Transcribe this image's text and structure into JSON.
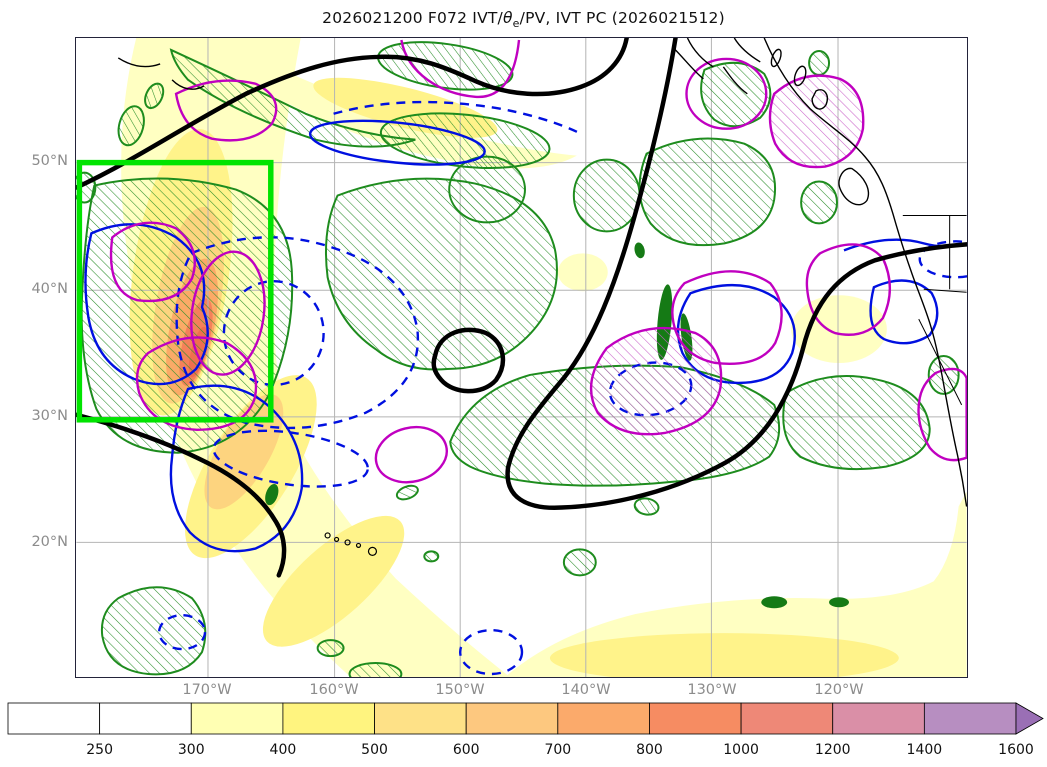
{
  "title": {
    "prefix": "2026021200 F072 IVT/",
    "theta": "θ",
    "theta_sub": "e",
    "suffix": "/PV, IVT PC (2026021512)"
  },
  "chart_data": {
    "type": "heatmap",
    "title": "2026021200 F072 IVT/θe/PV, IVT PC (2026021512)",
    "x_tick_labels": [
      "170°W",
      "160°W",
      "150°W",
      "140°W",
      "130°W",
      "120°W"
    ],
    "y_tick_labels": [
      "50°N",
      "40°N",
      "30°N",
      "20°N"
    ],
    "colorbar": {
      "levels": [
        "250",
        "300",
        "400",
        "500",
        "600",
        "700",
        "800",
        "1000",
        "1200",
        "1400",
        "1600"
      ],
      "segment_colors": [
        "#ffffff",
        "#ffffff",
        "#ffffb3",
        "#fff47f",
        "#fee187",
        "#fdc87f",
        "#fbaa6b",
        "#f68c62",
        "#ee8877",
        "#da8fa7",
        "#b78ec1"
      ],
      "arrow_color": "#9a6fb5",
      "border_color": "#000000"
    },
    "layers": {
      "ivt_fill_colors": [
        "#ffffc2",
        "#fff38a",
        "#fdd47f",
        "#fbaa67",
        "#f4815a",
        "#ef6f4e"
      ],
      "green_hatched_contour_color": "#1e8c1e",
      "blue_contour_color": "#0010e0",
      "magenta_contour_color": "#c000c0",
      "black_thick_contour_color": "#000000",
      "highlight_box_color": "#00e400",
      "gridline_color": "#b4b4b4",
      "coastline_color": "#000000"
    }
  }
}
